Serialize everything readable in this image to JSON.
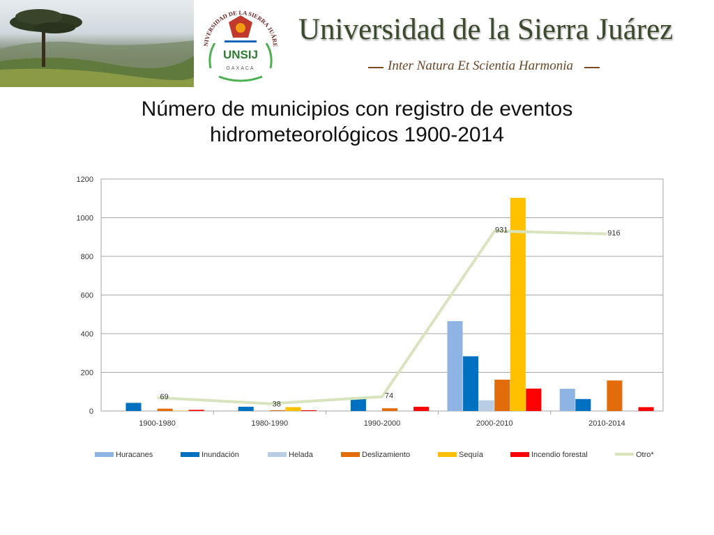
{
  "header": {
    "university_name": "Universidad de la Sierra Juárez",
    "motto": "Inter Natura Et Scientia Harmonia",
    "seal": {
      "ring_text": "UNIVERSIDAD DE LA SIERRA JUÁREZ",
      "acronym": "UNSIJ",
      "state": "OAXACA"
    }
  },
  "colors": {
    "title_green": "#3b4a2c",
    "motto_brown": "#6b4626",
    "acronym_green": "#2e7d32"
  },
  "chart_data": {
    "type": "bar",
    "title_lines": [
      "Número de municipios con registro de eventos",
      "hidrometeorológicos 1900-2014"
    ],
    "categories": [
      "1900-1980",
      "1980-1990",
      "1990-2000",
      "2000-2010",
      "2010-2014"
    ],
    "ylim": [
      0,
      1200
    ],
    "yticks": [
      0,
      200,
      400,
      600,
      800,
      1000,
      1200
    ],
    "grid": true,
    "legend_position": "bottom",
    "series": [
      {
        "name": "Huracanes",
        "kind": "bar",
        "color": "#8eb4e3",
        "values": [
          0,
          0,
          0,
          465,
          115
        ]
      },
      {
        "name": "Inundación",
        "kind": "bar",
        "color": "#0070c0",
        "values": [
          42,
          22,
          62,
          283,
          62
        ]
      },
      {
        "name": "Helada",
        "kind": "bar",
        "color": "#b9cde5",
        "values": [
          0,
          0,
          0,
          55,
          0
        ]
      },
      {
        "name": "Deslizamiento",
        "kind": "bar",
        "color": "#e36c0a",
        "values": [
          12,
          4,
          14,
          162,
          158
        ]
      },
      {
        "name": "Sequía",
        "kind": "bar",
        "color": "#ffc000",
        "values": [
          2,
          20,
          0,
          1103,
          0
        ]
      },
      {
        "name": "Incendio forestal",
        "kind": "bar",
        "color": "#ff0000",
        "values": [
          6,
          4,
          22,
          116,
          20
        ]
      },
      {
        "name": "Otro*",
        "kind": "line",
        "color": "#d7e4bd",
        "values": [
          69,
          38,
          74,
          931,
          916
        ],
        "labels": [
          "69",
          "38",
          "74",
          "931",
          "916"
        ]
      }
    ]
  }
}
